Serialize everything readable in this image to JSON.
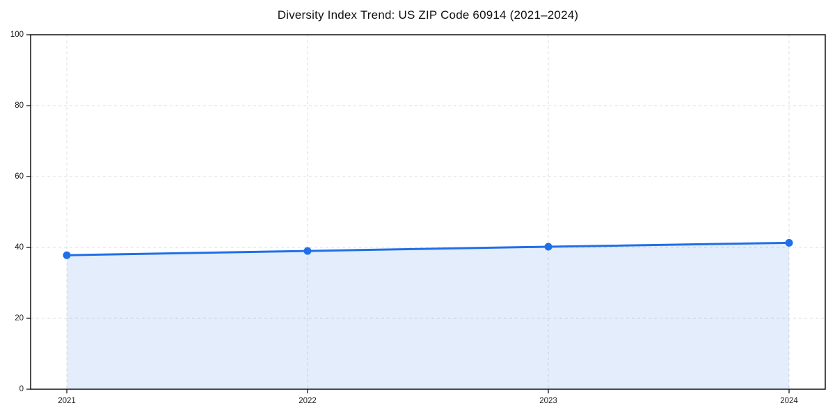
{
  "chart_data": {
    "type": "area",
    "title": "Diversity Index Trend: US ZIP Code 60914 (2021–2024)",
    "categories": [
      "2021",
      "2022",
      "2023",
      "2024"
    ],
    "series": [
      {
        "name": "Diversity Index",
        "values": [
          37.8,
          39.0,
          40.2,
          41.3
        ]
      }
    ],
    "xlabel": "",
    "ylabel": "",
    "ylim": [
      0,
      100
    ],
    "yticks": [
      0,
      20,
      40,
      60,
      80,
      100
    ],
    "grid": "dashed",
    "legend_position": "none",
    "colors": {
      "line": "#1f6fe8",
      "marker": "#1f6fe8",
      "fill": "#1f6fe8",
      "fill_opacity": "0.12",
      "grid": "#dedede",
      "axis": "#000000",
      "tick_text": "#1a1a1a",
      "background": "#ffffff"
    }
  }
}
